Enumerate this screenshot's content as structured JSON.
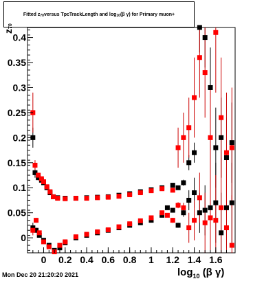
{
  "title": {
    "prefix": "Fitted  z",
    "z_sub": "70",
    "middle": "  versus  TpcTrackLength and log",
    "log_sub": "10",
    "suffix": "(β γ) for Primary muon+"
  },
  "timestamp": "Mon Dec 20 21:20:20 2021",
  "axis": {
    "xlabel_main": "log",
    "xlabel_sub": "10",
    "xlabel_tail": "(β γ)",
    "ylabel_main": "z",
    "ylabel_sub": "70"
  },
  "colors": {
    "black": "#000000",
    "red": "#ff0000",
    "errbar": "#cc0000"
  },
  "chart_data": {
    "type": "scatter",
    "xlim": [
      -0.15,
      1.78
    ],
    "ylim": [
      -0.03,
      0.42
    ],
    "x_ticks": [
      {
        "v": 0,
        "label": "0"
      },
      {
        "v": 0.2,
        "label": "0.2"
      },
      {
        "v": 0.4,
        "label": "0.4"
      },
      {
        "v": 0.6,
        "label": "0.6"
      },
      {
        "v": 0.8,
        "label": "0.8"
      },
      {
        "v": 1.0,
        "label": "1"
      },
      {
        "v": 1.2,
        "label": "1.2"
      },
      {
        "v": 1.4,
        "label": "1.4"
      },
      {
        "v": 1.6,
        "label": "1.6"
      }
    ],
    "y_ticks": [
      {
        "v": 0,
        "label": "0"
      },
      {
        "v": 0.05,
        "label": "0.05"
      },
      {
        "v": 0.1,
        "label": "0.1"
      },
      {
        "v": 0.15,
        "label": "0.15"
      },
      {
        "v": 0.2,
        "label": "0.2"
      },
      {
        "v": 0.25,
        "label": "0.25"
      },
      {
        "v": 0.3,
        "label": "0.3"
      },
      {
        "v": 0.35,
        "label": "0.35"
      },
      {
        "v": 0.4,
        "label": "0.4"
      }
    ],
    "series": [
      {
        "color": "black",
        "points": [
          [
            -0.1,
            0.2,
            0.02
          ],
          [
            -0.08,
            0.13,
            0.01
          ],
          [
            -0.05,
            0.12,
            0.005
          ],
          [
            -0.02,
            0.115,
            0.004
          ],
          [
            0.0,
            0.11,
            0.003
          ],
          [
            0.03,
            0.1,
            0.003
          ],
          [
            0.06,
            0.09,
            0.003
          ],
          [
            0.09,
            0.082,
            0.002
          ],
          [
            0.13,
            0.08,
            0.002
          ],
          [
            0.2,
            0.079,
            0.002
          ],
          [
            0.3,
            0.079,
            0.002
          ],
          [
            0.4,
            0.08,
            0.002
          ],
          [
            0.5,
            0.081,
            0.002
          ],
          [
            0.6,
            0.082,
            0.002
          ],
          [
            0.7,
            0.085,
            0.002
          ],
          [
            0.8,
            0.088,
            0.002
          ],
          [
            0.9,
            0.092,
            0.002
          ],
          [
            1.0,
            0.096,
            0.003
          ],
          [
            1.1,
            0.1,
            0.003
          ],
          [
            1.2,
            0.105,
            0.004
          ],
          [
            1.25,
            0.1,
            0.004
          ],
          [
            1.3,
            0.11,
            0.006
          ],
          [
            1.35,
            0.15,
            0.015
          ],
          [
            1.4,
            0.17,
            0.02
          ],
          [
            1.45,
            0.42,
            0.05
          ],
          [
            1.5,
            0.4,
            0.06
          ],
          [
            1.55,
            0.3,
            0.08
          ],
          [
            1.6,
            0.18,
            0.08
          ],
          [
            1.65,
            0.2,
            0.08
          ],
          [
            1.7,
            0.16,
            0.08
          ],
          [
            1.75,
            0.19,
            0.08
          ],
          [
            -0.1,
            0.02,
            0.01
          ],
          [
            -0.07,
            0.015,
            0.005
          ],
          [
            -0.04,
            0.005,
            0.004
          ],
          [
            0.0,
            -0.005,
            0.003
          ],
          [
            0.05,
            -0.015,
            0.003
          ],
          [
            0.1,
            -0.025,
            0.003
          ],
          [
            0.15,
            -0.02,
            0.002
          ],
          [
            0.2,
            -0.01,
            0.002
          ],
          [
            0.3,
            0.0,
            0.002
          ],
          [
            0.4,
            0.005,
            0.002
          ],
          [
            0.5,
            0.01,
            0.002
          ],
          [
            0.6,
            0.015,
            0.002
          ],
          [
            0.7,
            0.02,
            0.002
          ],
          [
            0.8,
            0.025,
            0.002
          ],
          [
            0.9,
            0.03,
            0.002
          ],
          [
            1.0,
            0.035,
            0.003
          ],
          [
            1.1,
            0.045,
            0.003
          ],
          [
            1.15,
            0.06,
            0.004
          ],
          [
            1.2,
            0.055,
            0.004
          ],
          [
            1.25,
            0.025,
            0.005
          ],
          [
            1.3,
            0.05,
            0.008
          ],
          [
            1.35,
            0.075,
            0.02
          ],
          [
            1.4,
            0.09,
            0.03
          ],
          [
            1.45,
            0.05,
            0.04
          ],
          [
            1.5,
            0.055,
            0.05
          ],
          [
            1.55,
            0.06,
            0.06
          ],
          [
            1.6,
            0.07,
            0.08
          ],
          [
            1.65,
            0.01,
            0.08
          ],
          [
            1.7,
            0.06,
            0.08
          ],
          [
            1.75,
            0.07,
            0.08
          ]
        ]
      },
      {
        "color": "red",
        "points": [
          [
            -0.1,
            0.25,
            0.04
          ],
          [
            -0.08,
            0.145,
            0.01
          ],
          [
            -0.05,
            0.125,
            0.005
          ],
          [
            -0.02,
            0.118,
            0.004
          ],
          [
            0.0,
            0.112,
            0.003
          ],
          [
            0.03,
            0.102,
            0.003
          ],
          [
            0.06,
            0.092,
            0.003
          ],
          [
            0.09,
            0.082,
            0.002
          ],
          [
            0.13,
            0.079,
            0.002
          ],
          [
            0.2,
            0.078,
            0.002
          ],
          [
            0.3,
            0.079,
            0.002
          ],
          [
            0.4,
            0.079,
            0.002
          ],
          [
            0.5,
            0.08,
            0.002
          ],
          [
            0.6,
            0.081,
            0.002
          ],
          [
            0.7,
            0.083,
            0.002
          ],
          [
            0.8,
            0.086,
            0.002
          ],
          [
            0.9,
            0.09,
            0.002
          ],
          [
            1.0,
            0.094,
            0.003
          ],
          [
            1.1,
            0.098,
            0.003
          ],
          [
            1.2,
            0.095,
            0.004
          ],
          [
            1.25,
            0.18,
            0.04
          ],
          [
            1.3,
            0.2,
            0.05
          ],
          [
            1.35,
            0.22,
            0.06
          ],
          [
            1.4,
            0.28,
            0.08
          ],
          [
            1.45,
            0.36,
            0.08
          ],
          [
            1.5,
            0.33,
            0.09
          ],
          [
            1.55,
            0.2,
            0.1
          ],
          [
            1.6,
            0.41,
            0.12
          ],
          [
            1.65,
            0.24,
            0.12
          ],
          [
            1.7,
            0.17,
            0.12
          ],
          [
            1.75,
            0.18,
            0.12
          ],
          [
            -0.1,
            0.015,
            0.01
          ],
          [
            -0.07,
            0.035,
            0.005
          ],
          [
            -0.04,
            0.01,
            0.004
          ],
          [
            0.0,
            -0.008,
            0.003
          ],
          [
            0.05,
            -0.018,
            0.003
          ],
          [
            0.1,
            -0.028,
            0.003
          ],
          [
            0.15,
            -0.015,
            0.002
          ],
          [
            0.2,
            -0.008,
            0.002
          ],
          [
            0.3,
            0.002,
            0.002
          ],
          [
            0.4,
            0.007,
            0.002
          ],
          [
            0.5,
            0.012,
            0.002
          ],
          [
            0.6,
            0.016,
            0.002
          ],
          [
            0.7,
            0.022,
            0.002
          ],
          [
            0.8,
            0.028,
            0.002
          ],
          [
            0.9,
            0.034,
            0.002
          ],
          [
            1.0,
            0.04,
            0.003
          ],
          [
            1.1,
            0.05,
            0.003
          ],
          [
            1.15,
            0.045,
            0.004
          ],
          [
            1.2,
            0.035,
            0.005
          ],
          [
            1.25,
            0.065,
            0.006
          ],
          [
            1.3,
            0.06,
            0.01
          ],
          [
            1.35,
            0.02,
            0.03
          ],
          [
            1.4,
            0.035,
            0.04
          ],
          [
            1.45,
            0.08,
            0.05
          ],
          [
            1.5,
            0.03,
            0.06
          ],
          [
            1.55,
            0.04,
            0.08
          ],
          [
            1.6,
            0.035,
            0.09
          ],
          [
            1.65,
            0.06,
            0.1
          ],
          [
            1.7,
            0.02,
            0.1
          ],
          [
            1.75,
            -0.015,
            0.1
          ]
        ]
      }
    ]
  }
}
